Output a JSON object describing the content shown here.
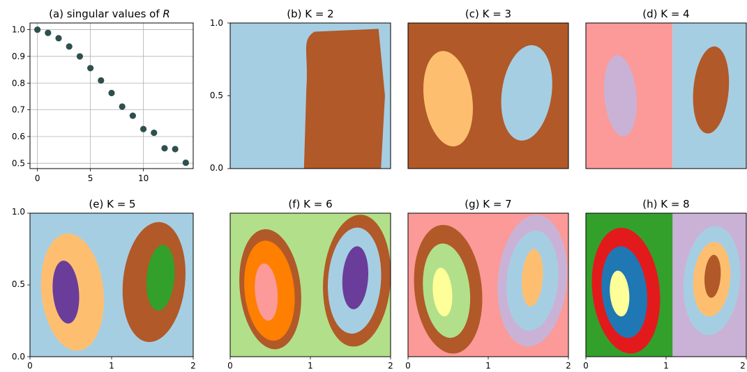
{
  "chart_data": [
    {
      "type": "scatter",
      "title": "(a) singular values of R",
      "title_main": "(a) singular values of ",
      "title_symbol": "R",
      "x": [
        0,
        1,
        2,
        3,
        4,
        5,
        6,
        7,
        8,
        9,
        10,
        11,
        12,
        13,
        14
      ],
      "y": [
        1.0,
        0.988,
        0.968,
        0.937,
        0.9,
        0.856,
        0.81,
        0.763,
        0.712,
        0.678,
        0.628,
        0.614,
        0.556,
        0.553,
        0.502
      ],
      "xlim": [
        -0.7,
        14.7
      ],
      "ylim": [
        0.48,
        1.025
      ],
      "xticks": [
        0,
        5,
        10
      ],
      "yticks": [
        0.5,
        0.6,
        0.7,
        0.8,
        0.9,
        1.0
      ],
      "grid": true,
      "marker_color": "#2f4f4f"
    },
    {
      "type": "heatmap",
      "title": "(b) K = 2",
      "K": 2,
      "xlim": [
        0,
        2
      ],
      "ylim": [
        0,
        1
      ]
    },
    {
      "type": "heatmap",
      "title": "(c) K = 3",
      "K": 3,
      "xlim": [
        0,
        2
      ],
      "ylim": [
        0,
        1
      ]
    },
    {
      "type": "heatmap",
      "title": "(d) K = 4",
      "K": 4,
      "xlim": [
        0,
        2
      ],
      "ylim": [
        0,
        1
      ]
    },
    {
      "type": "heatmap",
      "title": "(e) K = 5",
      "K": 5,
      "xlim": [
        0,
        2
      ],
      "ylim": [
        0,
        1
      ]
    },
    {
      "type": "heatmap",
      "title": "(f) K = 6",
      "K": 6,
      "xlim": [
        0,
        2
      ],
      "ylim": [
        0,
        1
      ]
    },
    {
      "type": "heatmap",
      "title": "(g) K = 7",
      "K": 7,
      "xlim": [
        0,
        2
      ],
      "ylim": [
        0,
        1
      ]
    },
    {
      "type": "heatmap",
      "title": "(h) K = 8",
      "K": 8,
      "xlim": [
        0,
        2
      ],
      "ylim": [
        0,
        1
      ]
    }
  ],
  "tick_labels": {
    "y_top_panel_b": [
      "0.0",
      "0.5",
      "1.0"
    ],
    "y_bottom_panel_e": [
      "0.0",
      "0.5",
      "1.0"
    ],
    "x_bottom_panels": [
      "0",
      "1",
      "2"
    ]
  },
  "colors": {
    "light_blue": "#a6cee3",
    "brown": "#b15928",
    "light_orange": "#fdbf6f",
    "pink": "#fb9a99",
    "lavender": "#cab2d6",
    "purple": "#6a3d9a",
    "green": "#33a02c",
    "light_green": "#b2df8a",
    "orange": "#ff7f00",
    "yellow": "#ffff99",
    "red": "#e31a1c",
    "blue": "#1f78b4"
  }
}
